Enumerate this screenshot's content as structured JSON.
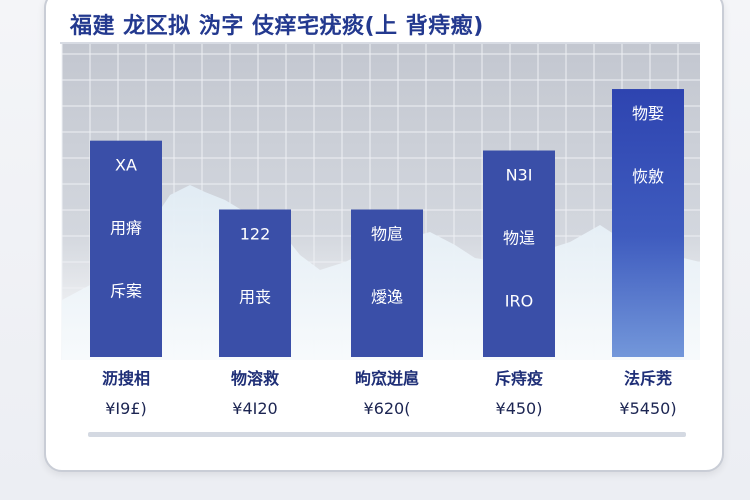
{
  "title": "福建 龙区拟 沩字 伎痒宅疣痰(上 背痔瘛)",
  "chart_data": {
    "type": "bar",
    "title": "福建 龙区拟 沩字 伎痒宅疣痰(上 背痔瘛)",
    "xlabel": "",
    "ylabel": "",
    "grid": true,
    "ylim": [
      0,
      6000
    ],
    "categories": [
      "沥搜相",
      "物溶救",
      "昫窊迸扈",
      "斥痔疫",
      "法斥茺"
    ],
    "price_labels": [
      "¥I9£)",
      "¥4I20",
      "¥620(",
      "¥450)",
      "¥5450)"
    ],
    "values": [
      4400,
      3000,
      3000,
      4200,
      5450
    ],
    "bar_texts": [
      [
        "XA",
        "用瘠",
        "斥案"
      ],
      [
        "122",
        "用丧"
      ],
      [
        "物扈",
        "燰逸"
      ],
      [
        "N3I",
        "物逞",
        "IRO"
      ],
      [
        "物娶",
        "恢敫"
      ]
    ],
    "colors": {
      "bar": "#3a4fa8",
      "bar_last_top": "#2f45b0",
      "bar_last_bottom": "#6d90d6",
      "grid_bg": "#c6cad3",
      "grid_line": "#eef0f4",
      "mountain": "#dce9f2"
    }
  }
}
